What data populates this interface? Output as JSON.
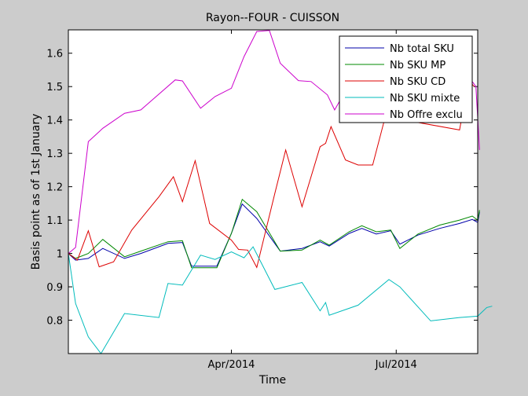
{
  "chart_data": {
    "type": "line",
    "title": "Rayon--FOUR - CUISSON",
    "xlabel": "Time",
    "ylabel": "Basis point as of 1st January",
    "xlim": [
      "2014-01-01",
      "2014-08-15"
    ],
    "ylim": [
      0.7,
      1.67
    ],
    "xticks": [
      {
        "date": "2014-04-01",
        "label": "Apr/2014"
      },
      {
        "date": "2014-07-01",
        "label": "Jul/2014"
      }
    ],
    "yticks": [
      0.8,
      0.9,
      1,
      1.1,
      1.2,
      1.3,
      1.4,
      1.5,
      1.6
    ],
    "ytick_labels": [
      "0.8",
      "0.9",
      "1",
      "1.1",
      "1.2",
      "1.3",
      "1.4",
      "1.5",
      "1.6"
    ],
    "grid": false,
    "legend_position": "top-right",
    "series": [
      {
        "name": "Nb total SKU",
        "color": "#0000aa",
        "points": [
          [
            "2014-01-01",
            1.0
          ],
          [
            "2014-01-05",
            0.98
          ],
          [
            "2014-01-12",
            0.985
          ],
          [
            "2014-01-20",
            1.015
          ],
          [
            "2014-02-01",
            0.985
          ],
          [
            "2014-02-10",
            1.0
          ],
          [
            "2014-02-25",
            1.03
          ],
          [
            "2014-03-05",
            1.033
          ],
          [
            "2014-03-10",
            0.962
          ],
          [
            "2014-03-24",
            0.962
          ],
          [
            "2014-04-01",
            1.06
          ],
          [
            "2014-04-07",
            1.148
          ],
          [
            "2014-04-15",
            1.105
          ],
          [
            "2014-04-28",
            1.007
          ],
          [
            "2014-05-10",
            1.015
          ],
          [
            "2014-05-20",
            1.035
          ],
          [
            "2014-05-25",
            1.022
          ],
          [
            "2014-06-05",
            1.06
          ],
          [
            "2014-06-12",
            1.075
          ],
          [
            "2014-06-20",
            1.058
          ],
          [
            "2014-06-28",
            1.068
          ],
          [
            "2014-07-03",
            1.028
          ],
          [
            "2014-07-13",
            1.055
          ],
          [
            "2014-07-25",
            1.075
          ],
          [
            "2014-08-05",
            1.09
          ],
          [
            "2014-08-12",
            1.102
          ],
          [
            "2014-08-15",
            1.093
          ],
          [
            "2014-08-16",
            1.125
          ]
        ]
      },
      {
        "name": "Nb SKU MP",
        "color": "#008800",
        "points": [
          [
            "2014-01-01",
            1.0
          ],
          [
            "2014-01-05",
            0.985
          ],
          [
            "2014-01-12",
            1.0
          ],
          [
            "2014-01-20",
            1.042
          ],
          [
            "2014-02-01",
            0.99
          ],
          [
            "2014-02-10",
            1.007
          ],
          [
            "2014-02-25",
            1.035
          ],
          [
            "2014-03-05",
            1.038
          ],
          [
            "2014-03-10",
            0.957
          ],
          [
            "2014-03-24",
            0.957
          ],
          [
            "2014-04-01",
            1.06
          ],
          [
            "2014-04-07",
            1.162
          ],
          [
            "2014-04-15",
            1.125
          ],
          [
            "2014-04-28",
            1.007
          ],
          [
            "2014-05-10",
            1.01
          ],
          [
            "2014-05-20",
            1.04
          ],
          [
            "2014-05-25",
            1.025
          ],
          [
            "2014-06-05",
            1.065
          ],
          [
            "2014-06-12",
            1.083
          ],
          [
            "2014-06-20",
            1.065
          ],
          [
            "2014-06-28",
            1.07
          ],
          [
            "2014-07-03",
            1.015
          ],
          [
            "2014-07-13",
            1.058
          ],
          [
            "2014-07-25",
            1.085
          ],
          [
            "2014-08-05",
            1.1
          ],
          [
            "2014-08-12",
            1.112
          ],
          [
            "2014-08-15",
            1.1
          ],
          [
            "2014-08-16",
            1.13
          ]
        ]
      },
      {
        "name": "Nb SKU CD",
        "color": "#dd0000",
        "points": [
          [
            "2014-01-01",
            1.0
          ],
          [
            "2014-01-06",
            0.98
          ],
          [
            "2014-01-12",
            1.068
          ],
          [
            "2014-01-18",
            0.96
          ],
          [
            "2014-01-26",
            0.975
          ],
          [
            "2014-02-05",
            1.07
          ],
          [
            "2014-02-20",
            1.17
          ],
          [
            "2014-02-28",
            1.23
          ],
          [
            "2014-03-05",
            1.155
          ],
          [
            "2014-03-12",
            1.278
          ],
          [
            "2014-03-20",
            1.09
          ],
          [
            "2014-04-01",
            1.04
          ],
          [
            "2014-04-05",
            1.012
          ],
          [
            "2014-04-10",
            1.01
          ],
          [
            "2014-04-15",
            0.958
          ],
          [
            "2014-04-25",
            1.18
          ],
          [
            "2014-05-01",
            1.31
          ],
          [
            "2014-05-10",
            1.14
          ],
          [
            "2014-05-20",
            1.32
          ],
          [
            "2014-05-23",
            1.33
          ],
          [
            "2014-05-26",
            1.38
          ],
          [
            "2014-06-03",
            1.28
          ],
          [
            "2014-06-10",
            1.265
          ],
          [
            "2014-06-18",
            1.265
          ],
          [
            "2014-06-25",
            1.41
          ],
          [
            "2014-08-05",
            1.37
          ],
          [
            "2014-08-10",
            1.52
          ],
          [
            "2014-08-13",
            1.5
          ]
        ]
      },
      {
        "name": "Nb SKU mixte",
        "color": "#00bbbb",
        "points": [
          [
            "2014-01-01",
            1.0
          ],
          [
            "2014-01-05",
            0.85
          ],
          [
            "2014-01-12",
            0.75
          ],
          [
            "2014-01-19",
            0.7
          ],
          [
            "2014-02-01",
            0.82
          ],
          [
            "2014-02-20",
            0.808
          ],
          [
            "2014-02-25",
            0.91
          ],
          [
            "2014-03-05",
            0.905
          ],
          [
            "2014-03-15",
            0.995
          ],
          [
            "2014-03-23",
            0.982
          ],
          [
            "2014-04-01",
            1.005
          ],
          [
            "2014-04-08",
            0.987
          ],
          [
            "2014-04-13",
            1.02
          ],
          [
            "2014-04-25",
            0.892
          ],
          [
            "2014-05-10",
            0.913
          ],
          [
            "2014-05-20",
            0.828
          ],
          [
            "2014-05-23",
            0.853
          ],
          [
            "2014-05-25",
            0.815
          ],
          [
            "2014-06-10",
            0.845
          ],
          [
            "2014-06-27",
            0.922
          ],
          [
            "2014-07-03",
            0.9
          ],
          [
            "2014-07-20",
            0.798
          ],
          [
            "2014-08-05",
            0.808
          ],
          [
            "2014-08-15",
            0.812
          ],
          [
            "2014-08-20",
            0.838
          ],
          [
            "2014-08-23",
            0.842
          ]
        ]
      },
      {
        "name": "Nb Offre exclu",
        "color": "#cc00cc",
        "points": [
          [
            "2014-01-01",
            1.0
          ],
          [
            "2014-01-05",
            1.018
          ],
          [
            "2014-01-12",
            1.335
          ],
          [
            "2014-01-20",
            1.375
          ],
          [
            "2014-02-01",
            1.42
          ],
          [
            "2014-02-10",
            1.43
          ],
          [
            "2014-03-01",
            1.52
          ],
          [
            "2014-03-05",
            1.517
          ],
          [
            "2014-03-15",
            1.435
          ],
          [
            "2014-03-23",
            1.47
          ],
          [
            "2014-04-01",
            1.495
          ],
          [
            "2014-04-08",
            1.59
          ],
          [
            "2014-04-15",
            1.665
          ],
          [
            "2014-04-22",
            1.668
          ],
          [
            "2014-04-28",
            1.57
          ],
          [
            "2014-05-08",
            1.518
          ],
          [
            "2014-05-15",
            1.515
          ],
          [
            "2014-05-24",
            1.475
          ],
          [
            "2014-05-28",
            1.43
          ],
          [
            "2014-06-02",
            1.478
          ],
          [
            "2014-06-12",
            1.525
          ],
          [
            "2014-08-10",
            1.53
          ],
          [
            "2014-08-14",
            1.5
          ],
          [
            "2014-08-16",
            1.31
          ]
        ]
      }
    ]
  }
}
